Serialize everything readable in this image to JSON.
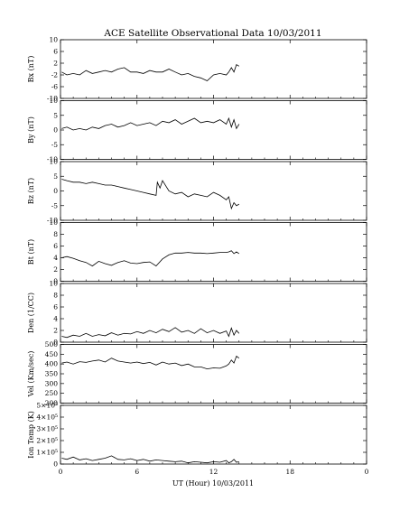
{
  "title": "ACE Satellite Observational Data   10/03/2011",
  "xlabel": "UT (Hour)  10/03/2011",
  "chart_data": [
    {
      "type": "line",
      "ylabel": "Bx (nT)",
      "ylim": [
        -10,
        10
      ],
      "yticks": [
        "10",
        "6",
        "2",
        "-2",
        "-6",
        "-10"
      ],
      "xlim": [
        0,
        24
      ],
      "xticks": [
        "0",
        "6",
        "12",
        "18",
        "0"
      ],
      "series": [
        {
          "x": [
            0.1,
            0.5,
            1,
            1.5,
            2,
            2.5,
            3,
            3.5,
            4,
            4.5,
            5,
            5.5,
            6,
            6.5,
            7,
            7.5,
            8,
            8.5,
            9,
            9.5,
            10,
            10.5,
            11,
            11.5,
            12,
            12.5,
            13,
            13.2,
            13.4,
            13.6,
            13.8,
            14.0
          ],
          "y": [
            -1,
            -2,
            -1.5,
            -2,
            -0.5,
            -1.5,
            -1,
            -0.5,
            -1,
            0,
            0.5,
            -1,
            -1,
            -1.5,
            -0.5,
            -1,
            -1,
            0,
            -1,
            -2,
            -1.5,
            -2.5,
            -3,
            -4,
            -2,
            -1.5,
            -2,
            -1,
            0.5,
            -1,
            1.5,
            1
          ]
        }
      ]
    },
    {
      "type": "line",
      "ylabel": "By (nT)",
      "ylim": [
        -10,
        10
      ],
      "yticks": [
        "10",
        "5",
        "0",
        "-5",
        "-10"
      ],
      "xlim": [
        0,
        24
      ],
      "xticks": [
        "0",
        "6",
        "12",
        "18",
        "0"
      ],
      "series": [
        {
          "x": [
            0.1,
            0.5,
            1,
            1.5,
            2,
            2.5,
            3,
            3.5,
            4,
            4.5,
            5,
            5.5,
            6,
            6.5,
            7,
            7.5,
            8,
            8.5,
            9,
            9.5,
            10,
            10.5,
            11,
            11.5,
            12,
            12.5,
            13,
            13.2,
            13.4,
            13.6,
            13.8,
            14.0
          ],
          "y": [
            0.5,
            1,
            0,
            0.5,
            0,
            1,
            0.5,
            1.5,
            2,
            1,
            1.5,
            2.5,
            1.5,
            2,
            2.5,
            1.5,
            3,
            2.5,
            3.5,
            2,
            3,
            4,
            2.5,
            3,
            2.5,
            3.5,
            2,
            4,
            1,
            3.5,
            0.5,
            2
          ]
        }
      ]
    },
    {
      "type": "line",
      "ylabel": "Bz (nT)",
      "ylim": [
        -10,
        10
      ],
      "yticks": [
        "10",
        "5",
        "0",
        "-5",
        "-10"
      ],
      "xlim": [
        0,
        24
      ],
      "xticks": [
        "0",
        "6",
        "12",
        "18",
        "0"
      ],
      "series": [
        {
          "x": [
            0.1,
            0.5,
            1,
            1.5,
            2,
            2.5,
            3,
            3.5,
            4,
            4.5,
            5,
            5.5,
            6,
            6.5,
            7,
            7.5,
            7.6,
            7.8,
            8,
            8.5,
            9,
            9.5,
            10,
            10.5,
            11,
            11.5,
            12,
            12.5,
            13,
            13.2,
            13.4,
            13.6,
            13.8,
            14.0
          ],
          "y": [
            4,
            3.5,
            3,
            3,
            2.5,
            3,
            2.5,
            2,
            2,
            1.5,
            1,
            0.5,
            0,
            -0.5,
            -1,
            -1.5,
            3,
            1,
            3.5,
            0,
            -1,
            -0.5,
            -2,
            -1,
            -1.5,
            -2,
            -0.5,
            -1.5,
            -3,
            -2,
            -6,
            -4,
            -5,
            -4.5
          ]
        }
      ]
    },
    {
      "type": "line",
      "ylabel": "Bt (nT)",
      "ylim": [
        0,
        10
      ],
      "yticks": [
        "10",
        "8",
        "6",
        "4",
        "2",
        "0"
      ],
      "xlim": [
        0,
        24
      ],
      "xticks": [
        "0",
        "6",
        "12",
        "18",
        "0"
      ],
      "series": [
        {
          "x": [
            0.1,
            0.5,
            1,
            1.5,
            2,
            2.5,
            3,
            3.5,
            4,
            4.5,
            5,
            5.5,
            6,
            6.5,
            7,
            7.5,
            8,
            8.5,
            9,
            9.5,
            10,
            10.5,
            11,
            11.5,
            12,
            12.5,
            13,
            13.2,
            13.4,
            13.6,
            13.8,
            14.0
          ],
          "y": [
            4,
            4.2,
            3.9,
            3.5,
            3.2,
            2.6,
            3.4,
            3,
            2.7,
            3.2,
            3.5,
            3.1,
            3,
            3.2,
            3.3,
            2.6,
            3.8,
            4.5,
            4.8,
            4.8,
            4.9,
            4.8,
            4.8,
            4.7,
            4.8,
            4.9,
            4.9,
            5,
            5.2,
            4.7,
            5,
            4.7
          ]
        }
      ]
    },
    {
      "type": "line",
      "ylabel": "Den (1/CC)",
      "ylim": [
        0,
        10
      ],
      "yticks": [
        "10",
        "8",
        "6",
        "4",
        "2",
        "0"
      ],
      "xlim": [
        0,
        24
      ],
      "xticks": [
        "0",
        "6",
        "12",
        "18",
        "0"
      ],
      "series": [
        {
          "x": [
            0.1,
            0.5,
            1,
            1.5,
            2,
            2.5,
            3,
            3.5,
            4,
            4.5,
            5,
            5.5,
            6,
            6.5,
            7,
            7.5,
            8,
            8.5,
            9,
            9.5,
            10,
            10.5,
            11,
            11.5,
            12,
            12.5,
            13,
            13.2,
            13.4,
            13.6,
            13.8,
            14.0
          ],
          "y": [
            1,
            0.8,
            1.2,
            1,
            1.5,
            1,
            1.3,
            1.1,
            1.6,
            1.2,
            1.5,
            1.4,
            1.8,
            1.5,
            2,
            1.6,
            2.2,
            1.8,
            2.5,
            1.7,
            2,
            1.5,
            2.3,
            1.6,
            2,
            1.5,
            1.9,
            1,
            2.4,
            1.2,
            2,
            1.5
          ]
        }
      ]
    },
    {
      "type": "line",
      "ylabel": "Vel (Km/sec)",
      "ylim": [
        200,
        500
      ],
      "yticks": [
        "500",
        "450",
        "400",
        "350",
        "300",
        "250",
        "200"
      ],
      "xlim": [
        0,
        24
      ],
      "xticks": [
        "0",
        "6",
        "12",
        "18",
        "0"
      ],
      "series": [
        {
          "x": [
            0.1,
            0.5,
            1,
            1.5,
            2,
            2.5,
            3,
            3.5,
            4,
            4.5,
            5,
            5.5,
            6,
            6.5,
            7,
            7.5,
            8,
            8.5,
            9,
            9.5,
            10,
            10.5,
            11,
            11.5,
            12,
            12.5,
            13,
            13.2,
            13.4,
            13.6,
            13.8,
            14.0
          ],
          "y": [
            405,
            410,
            400,
            412,
            408,
            415,
            420,
            410,
            430,
            415,
            410,
            405,
            410,
            402,
            408,
            395,
            410,
            400,
            405,
            392,
            400,
            385,
            385,
            375,
            380,
            378,
            390,
            400,
            420,
            405,
            440,
            430
          ]
        }
      ]
    },
    {
      "type": "line",
      "ylabel": "Ion Temp (K)",
      "ylim": [
        0,
        500000
      ],
      "yticks": [
        "5×10⁵",
        "4×10⁵",
        "3×10⁵",
        "2×10⁵",
        "1×10⁵",
        "0"
      ],
      "xlim": [
        0,
        24
      ],
      "xticks": [
        "0",
        "6",
        "12",
        "18",
        "0"
      ],
      "series": [
        {
          "x": [
            0.1,
            0.5,
            1,
            1.5,
            2,
            2.5,
            3,
            3.5,
            4,
            4.5,
            5,
            5.5,
            6,
            6.5,
            7,
            7.5,
            8,
            8.5,
            9,
            9.5,
            10,
            10.5,
            11,
            11.5,
            12,
            12.5,
            13,
            13.2,
            13.4,
            13.6,
            13.8,
            14.0
          ],
          "y": [
            50000,
            40000,
            60000,
            35000,
            45000,
            30000,
            40000,
            50000,
            70000,
            40000,
            35000,
            45000,
            30000,
            40000,
            25000,
            35000,
            30000,
            25000,
            20000,
            25000,
            10000,
            20000,
            15000,
            10000,
            20000,
            15000,
            30000,
            10000,
            20000,
            40000,
            15000,
            20000
          ]
        }
      ]
    }
  ]
}
